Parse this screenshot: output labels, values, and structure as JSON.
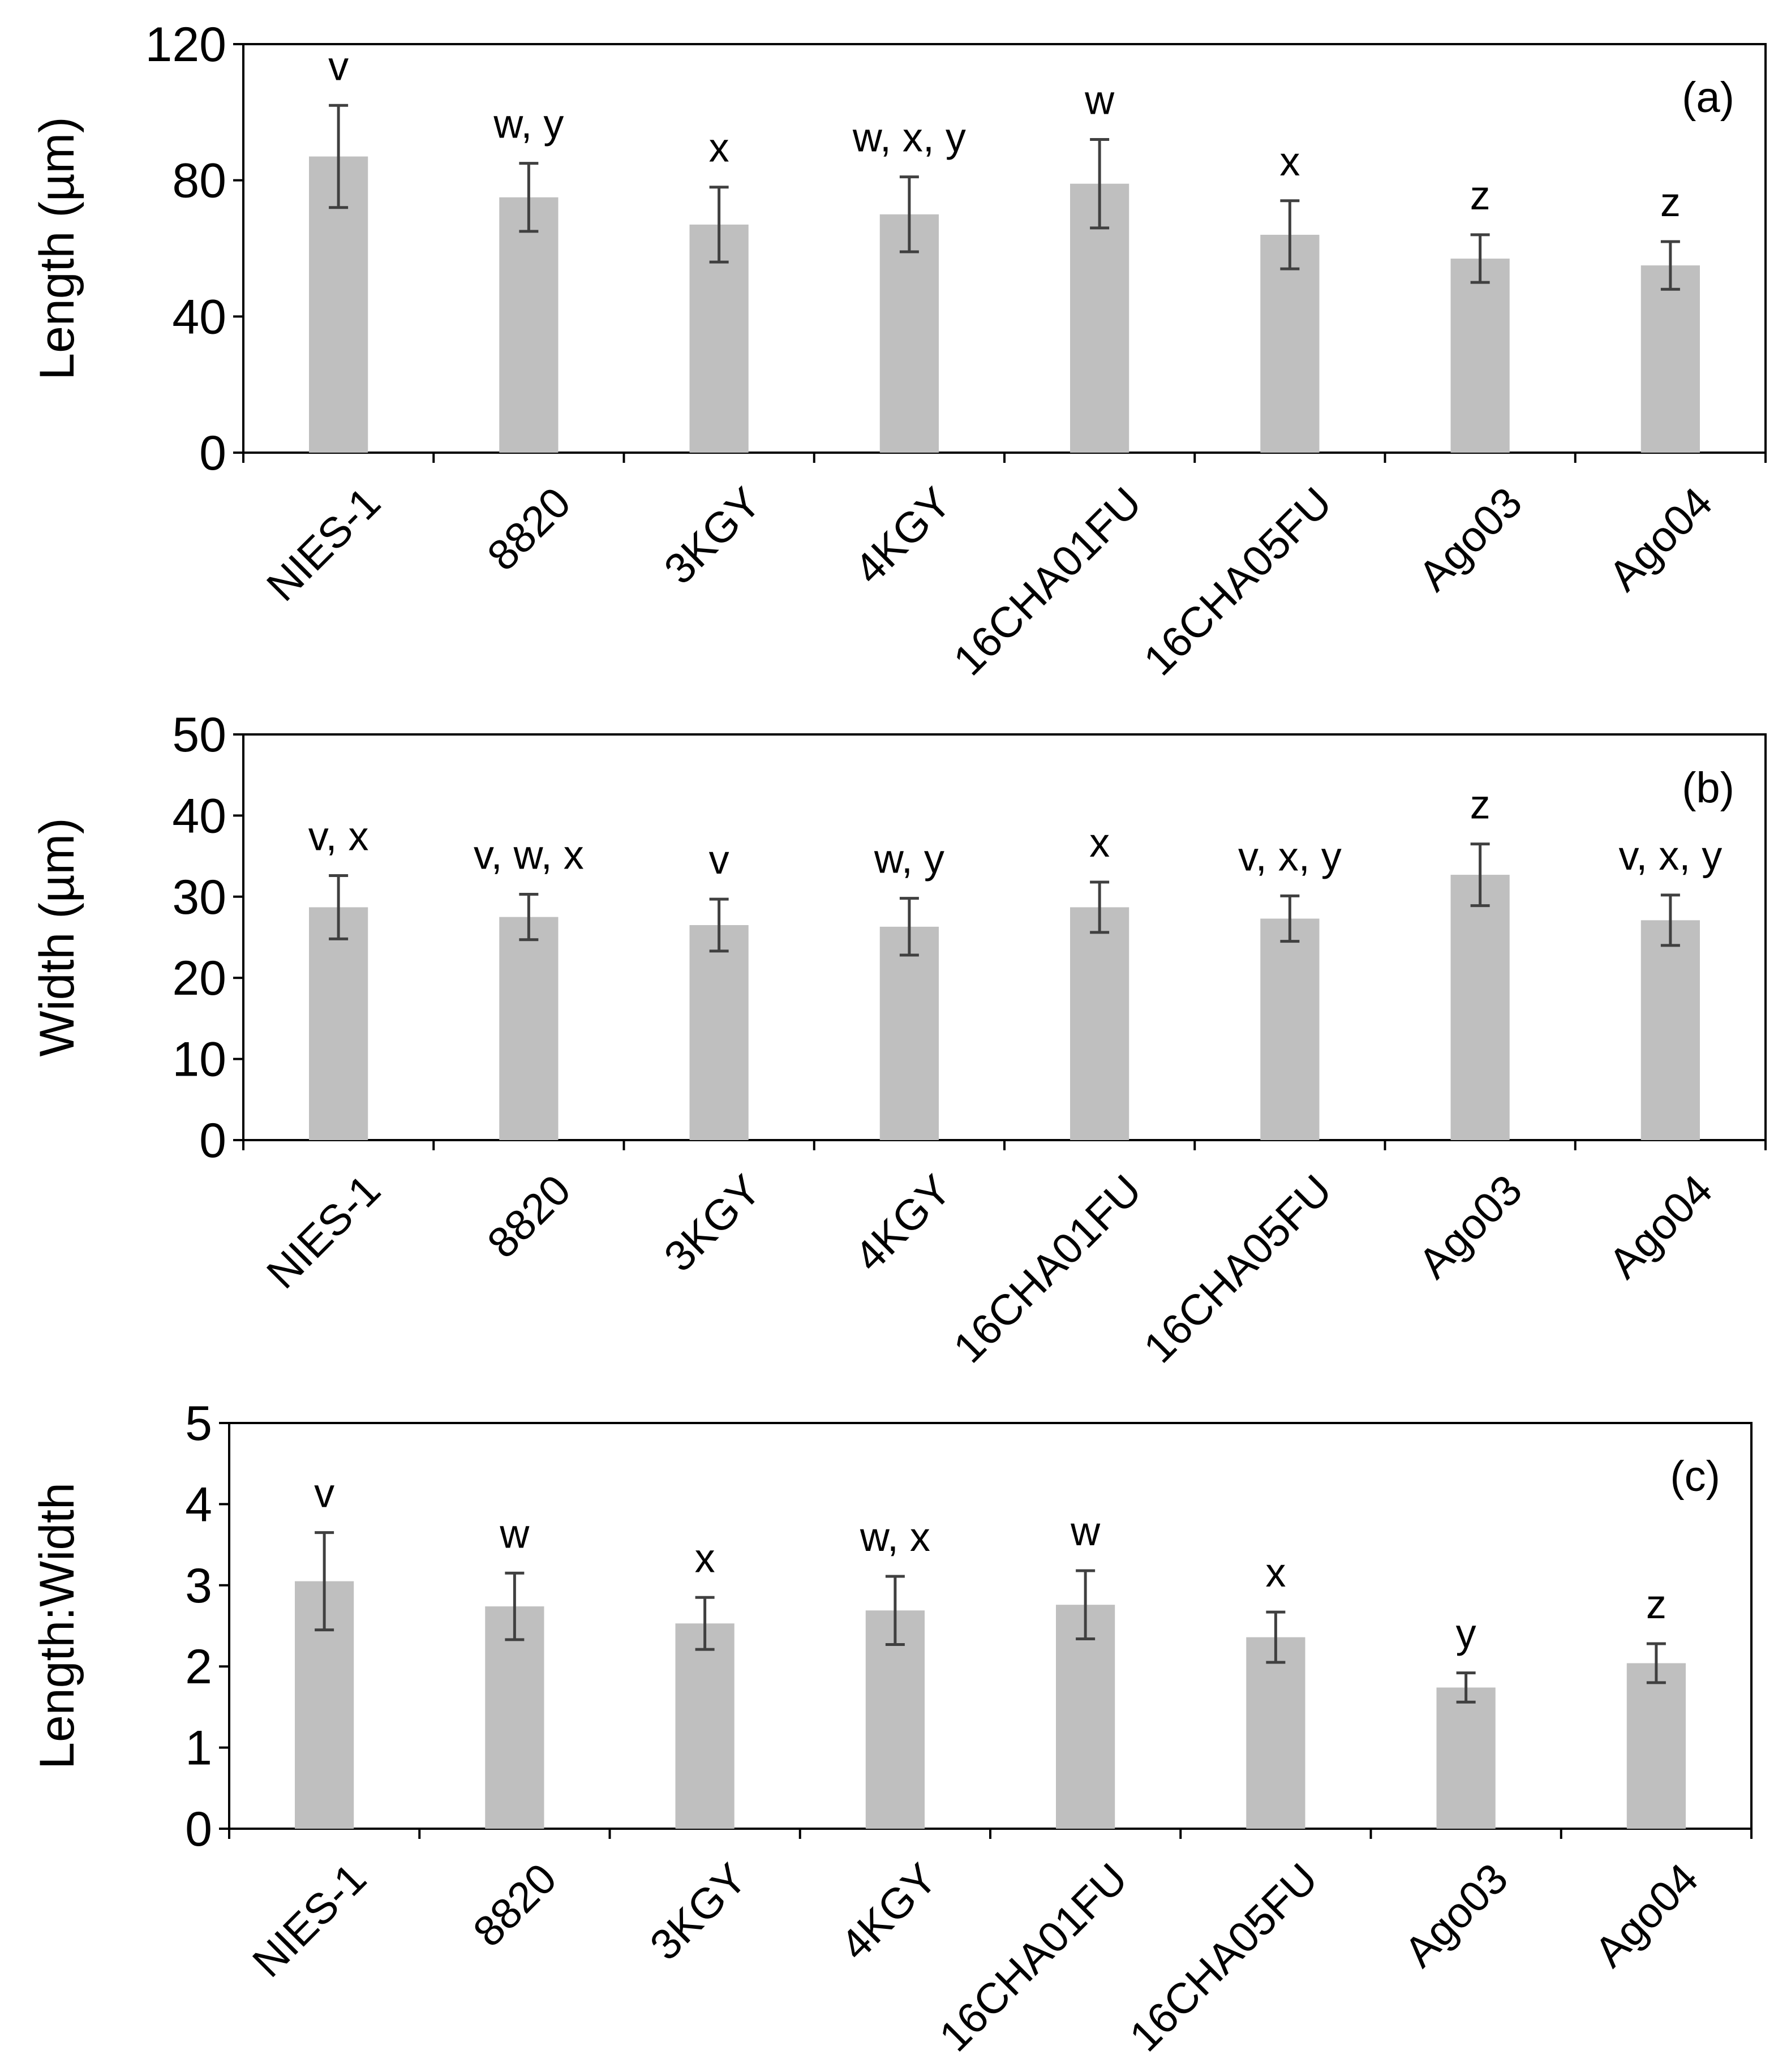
{
  "colors": {
    "bar": "#bfbfbf",
    "axis": "#000000",
    "error": "#404040",
    "background": "#ffffff"
  },
  "chart_data": [
    {
      "type": "bar",
      "panel_label": "(a)",
      "ylabel": "Length (µm)",
      "ylim": [
        0,
        120
      ],
      "yticks": [
        "0",
        "40",
        "80",
        "120"
      ],
      "ytick_values": [
        0,
        40,
        80,
        120
      ],
      "categories": [
        "NIES-1",
        "8820",
        "3KGY",
        "4KGY",
        "16CHA01FU",
        "16CHA05FU",
        "Ago03",
        "Ago04"
      ],
      "values": [
        87,
        75,
        67,
        70,
        79,
        64,
        57,
        55
      ],
      "errors": [
        15,
        10,
        11,
        11,
        13,
        10,
        7,
        7
      ],
      "significance": [
        "v",
        "w, y",
        "x",
        "w, x, y",
        "w",
        "x",
        "z",
        "z"
      ],
      "legend": "none",
      "grid": false
    },
    {
      "type": "bar",
      "panel_label": "(b)",
      "ylabel": "Width (µm)",
      "ylim": [
        0,
        50
      ],
      "yticks": [
        "0",
        "10",
        "20",
        "30",
        "40",
        "50"
      ],
      "ytick_values": [
        0,
        10,
        20,
        30,
        40,
        50
      ],
      "categories": [
        "NIES-1",
        "8820",
        "3KGY",
        "4KGY",
        "16CHA01FU",
        "16CHA05FU",
        "Ago03",
        "Ago04"
      ],
      "values": [
        28.7,
        27.5,
        26.5,
        26.3,
        28.7,
        27.3,
        32.7,
        27.1
      ],
      "errors": [
        3.9,
        2.8,
        3.2,
        3.5,
        3.1,
        2.8,
        3.8,
        3.1
      ],
      "significance": [
        "v, x",
        "v, w, x",
        "v",
        "w, y",
        "x",
        "v, x, y",
        "z",
        "v, x, y"
      ],
      "legend": "none",
      "grid": false
    },
    {
      "type": "bar",
      "panel_label": "(c)",
      "ylabel": "Length:Width",
      "ylim": [
        0,
        5
      ],
      "yticks": [
        "0",
        "1",
        "2",
        "3",
        "4",
        "5"
      ],
      "ytick_values": [
        0,
        1,
        2,
        3,
        4,
        5
      ],
      "categories": [
        "NIES-1",
        "8820",
        "3KGY",
        "4KGY",
        "16CHA01FU",
        "16CHA05FU",
        "Ago03",
        "Ago04"
      ],
      "values": [
        3.05,
        2.74,
        2.53,
        2.69,
        2.76,
        2.36,
        1.74,
        2.04
      ],
      "errors": [
        0.6,
        0.41,
        0.32,
        0.42,
        0.42,
        0.31,
        0.18,
        0.24
      ],
      "significance": [
        "v",
        "w",
        "x",
        "w, x",
        "w",
        "x",
        "y",
        "z"
      ],
      "legend": "none",
      "grid": false
    }
  ]
}
